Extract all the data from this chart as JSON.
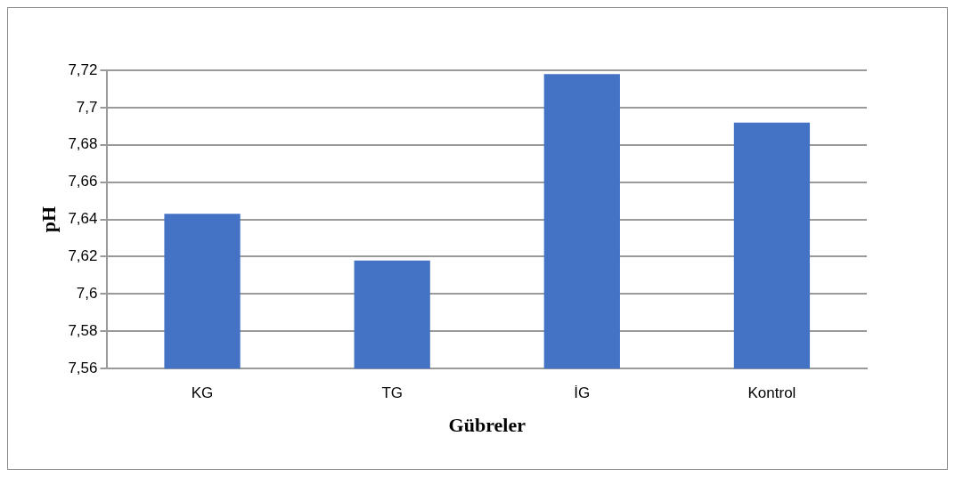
{
  "chart_data": {
    "type": "bar",
    "xlabel": "Gübreler",
    "ylabel": "pH",
    "categories": [
      "KG",
      "TG",
      "İG",
      "Kontrol"
    ],
    "values": [
      7.643,
      7.618,
      7.718,
      7.692
    ],
    "color": "#4472c4",
    "ylim": [
      7.56,
      7.72
    ],
    "yticks": [
      {
        "value": 7.56,
        "label": "7,56"
      },
      {
        "value": 7.58,
        "label": "7,58"
      },
      {
        "value": 7.6,
        "label": "7,6"
      },
      {
        "value": 7.62,
        "label": "7,62"
      },
      {
        "value": 7.64,
        "label": "7,64"
      },
      {
        "value": 7.66,
        "label": "7,66"
      },
      {
        "value": 7.68,
        "label": "7,68"
      },
      {
        "value": 7.7,
        "label": "7,7"
      },
      {
        "value": 7.72,
        "label": "7,72"
      }
    ],
    "grid": "y",
    "legend": false
  }
}
